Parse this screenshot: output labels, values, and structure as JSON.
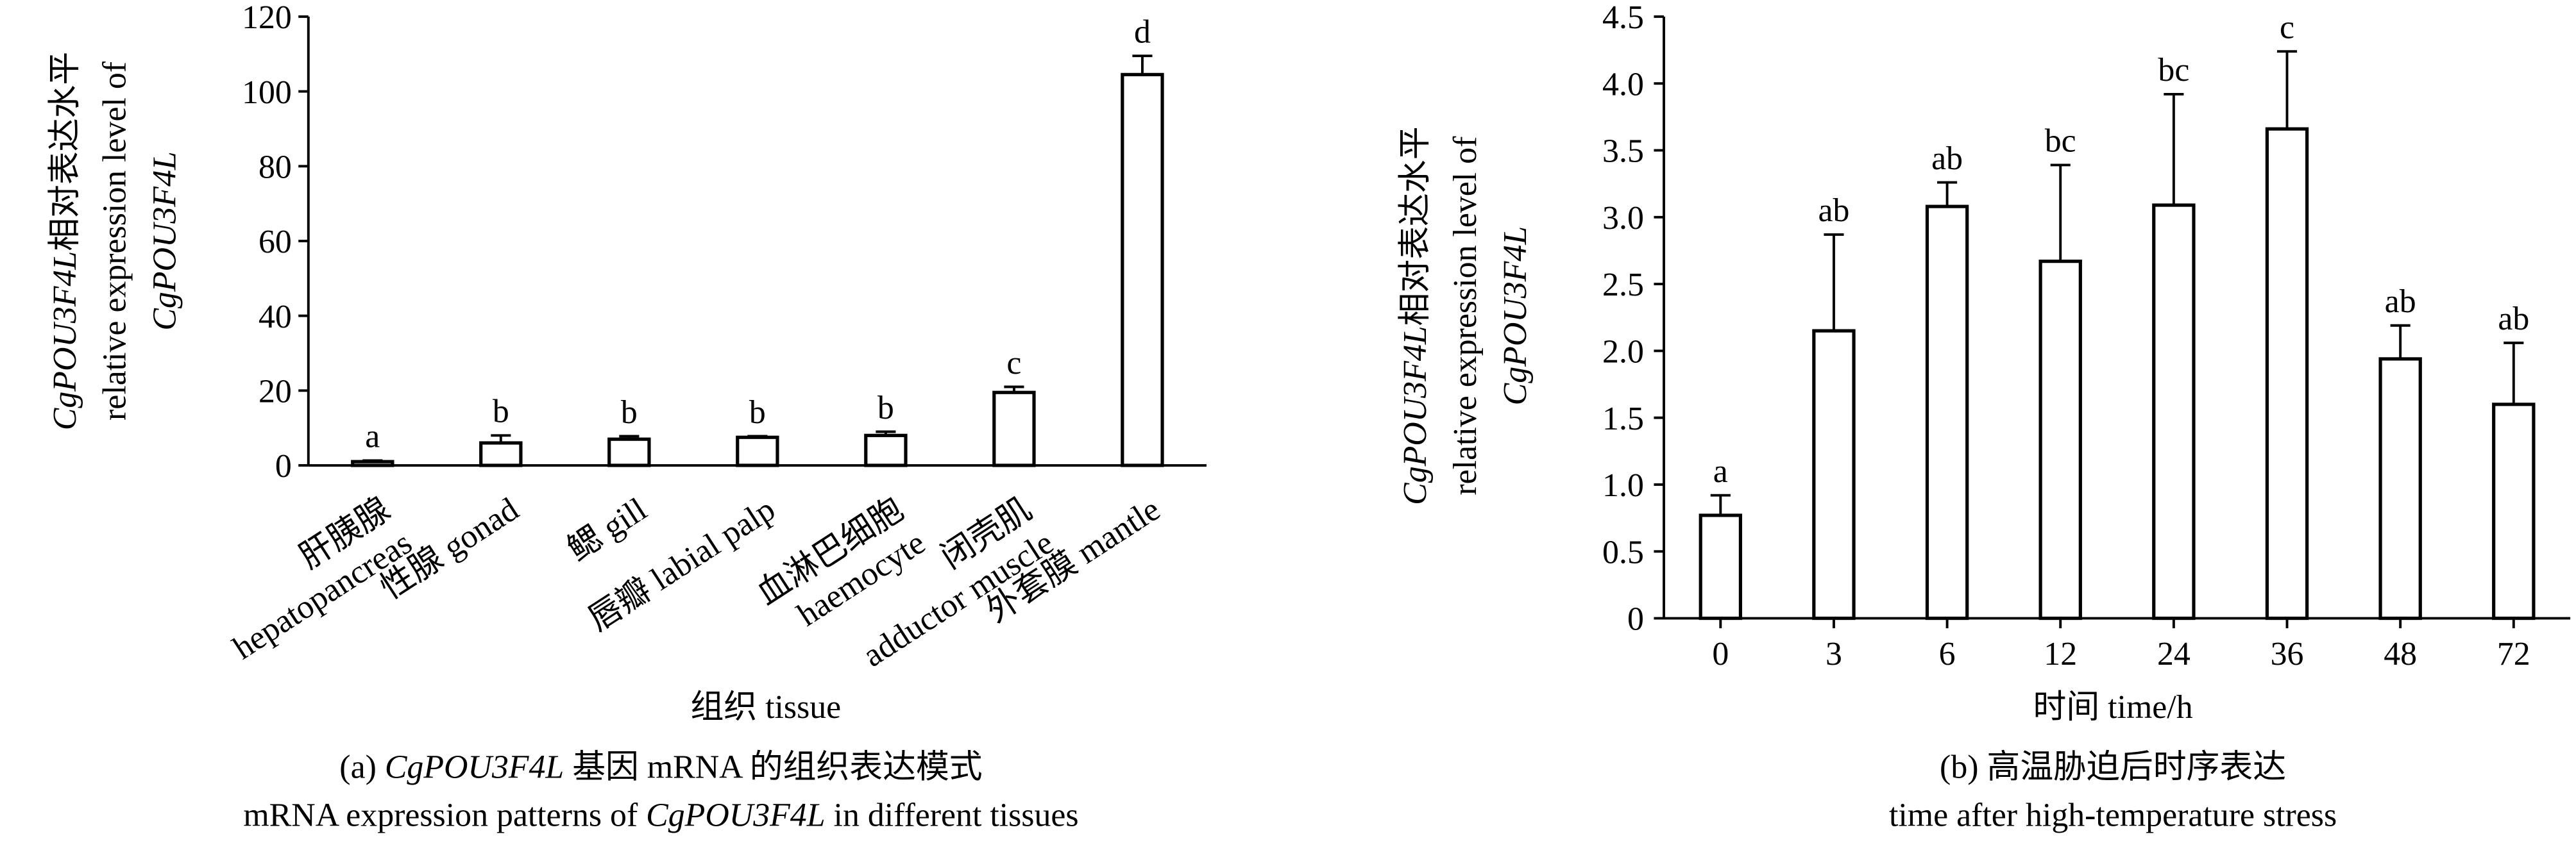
{
  "chart_data": [
    {
      "type": "bar",
      "y_label": [
        [
          "CgPOU3F4L",
          "相对表达水平"
        ],
        [
          "relative expression level of"
        ],
        [
          "CgPOU3F4L"
        ]
      ],
      "x_label": [
        "组织 tissue"
      ],
      "caption": [
        [
          "(a) ",
          "CgPOU3F4L",
          " 基因 mRNA 的组织表达模式"
        ],
        [
          "mRNA expression patterns of ",
          "CgPOU3F4L",
          " in different tissues"
        ]
      ],
      "categories": [
        [
          "肝胰腺",
          "hepatopancreas"
        ],
        [
          "性腺 gonad"
        ],
        [
          "鳃 gill"
        ],
        [
          "唇瓣 labial palp"
        ],
        [
          "血淋巴细胞",
          "haemocyte"
        ],
        [
          "闭壳肌",
          "adductor muscle"
        ],
        [
          "外套膜 mantle"
        ]
      ],
      "values": [
        1,
        6,
        7,
        7.5,
        8,
        19.5,
        104.5
      ],
      "errors": [
        0.3,
        2,
        0.8,
        0.3,
        1,
        1.5,
        5
      ],
      "significance_labels": [
        "a",
        "b",
        "b",
        "b",
        "b",
        "c",
        "d"
      ],
      "color": "#ffffff",
      "edge_color": "#000000",
      "ylim": [
        0,
        120
      ],
      "yticks": [
        0,
        20,
        40,
        60,
        80,
        100,
        120
      ]
    },
    {
      "type": "bar",
      "y_label": [
        [
          "CgPOU3F4L",
          "相对表达水平"
        ],
        [
          "relative expression level of"
        ],
        [
          "CgPOU3F4L"
        ]
      ],
      "x_label": [
        "时间 time/h"
      ],
      "caption": [
        [
          "(b) 高温胁迫后时序表达"
        ],
        [
          "time after high-temperature stress"
        ]
      ],
      "categories": [
        [
          "0"
        ],
        [
          "3"
        ],
        [
          "6"
        ],
        [
          "12"
        ],
        [
          "24"
        ],
        [
          "36"
        ],
        [
          "48"
        ],
        [
          "72"
        ]
      ],
      "values": [
        0.77,
        2.15,
        3.08,
        2.67,
        3.09,
        3.66,
        1.94,
        1.6
      ],
      "errors": [
        0.15,
        0.72,
        0.18,
        0.72,
        0.83,
        0.58,
        0.25,
        0.46
      ],
      "significance_labels": [
        "a",
        "ab",
        "ab",
        "bc",
        "bc",
        "c",
        "ab",
        "ab"
      ],
      "color": "#ffffff",
      "edge_color": "#000000",
      "ylim": [
        0,
        4.5
      ],
      "yticks": [
        0,
        0.5,
        {
          "value": 1,
          "label": "1.0"
        },
        1.5,
        {
          "value": 2,
          "label": "2.0"
        },
        2.5,
        {
          "value": 3,
          "label": "3.0"
        },
        3.5,
        {
          "value": 4,
          "label": "4.0"
        },
        4.5
      ]
    }
  ]
}
